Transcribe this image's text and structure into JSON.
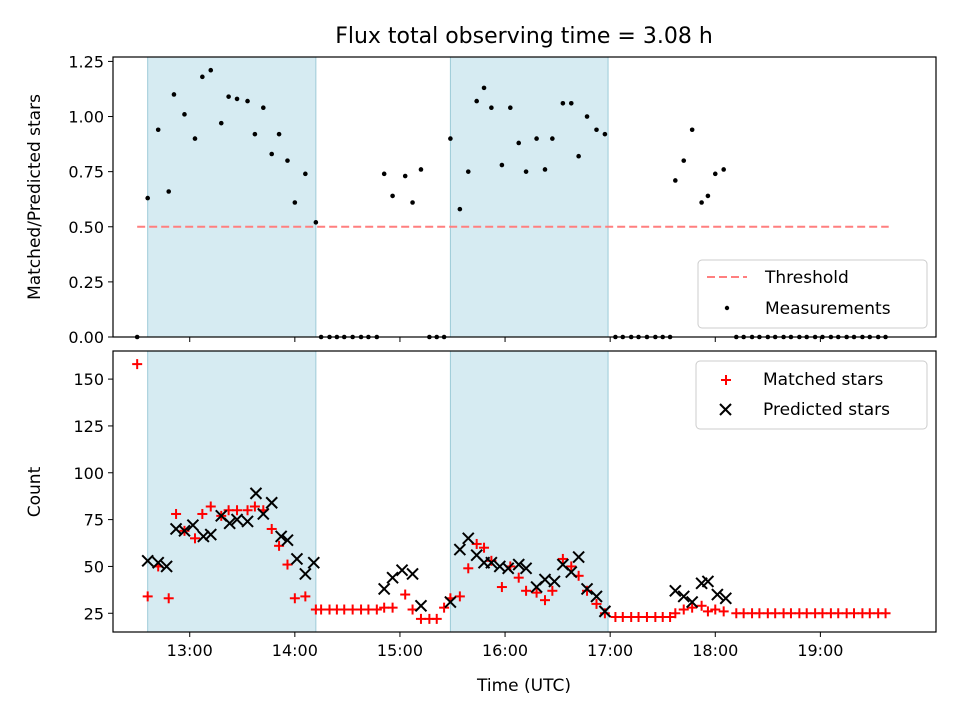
{
  "figure": {
    "title": "Flux total observing time = 3.08 h",
    "xlabel": "Time (UTC)",
    "x_ticks": [
      "13:00",
      "14:00",
      "15:00",
      "16:00",
      "17:00",
      "18:00",
      "19:00"
    ]
  },
  "chart_data": [
    {
      "type": "scatter",
      "ylabel": "Matched/Predicted stars",
      "xlim": [
        12.27,
        20.1
      ],
      "ylim": [
        0.0,
        1.27
      ],
      "y_ticks": [
        "0.00",
        "0.25",
        "0.50",
        "0.75",
        "1.00",
        "1.25"
      ],
      "legend_placement": "lower-right",
      "shaded_intervals": [
        [
          12.6,
          14.2
        ],
        [
          15.48,
          16.98
        ]
      ],
      "threshold": {
        "name": "Threshold",
        "y": 0.5,
        "x_range": [
          12.5,
          19.65
        ],
        "color": "#ff7f7f",
        "dashed": true
      },
      "series": [
        {
          "name": "Measurements",
          "color": "#000000",
          "x": [
            12.5,
            12.6,
            12.7,
            12.8,
            12.85,
            12.95,
            13.05,
            13.12,
            13.2,
            13.3,
            13.37,
            13.45,
            13.55,
            13.62,
            13.7,
            13.78,
            13.85,
            13.93,
            14.0,
            14.1,
            14.2,
            14.25,
            14.33,
            14.4,
            14.47,
            14.55,
            14.63,
            14.7,
            14.78,
            14.85,
            14.93,
            15.05,
            15.12,
            15.2,
            15.28,
            15.35,
            15.42,
            15.48,
            15.57,
            15.65,
            15.73,
            15.8,
            15.87,
            15.97,
            16.05,
            16.13,
            16.2,
            16.3,
            16.38,
            16.45,
            16.55,
            16.63,
            16.7,
            16.78,
            16.87,
            16.95,
            17.05,
            17.12,
            17.2,
            17.27,
            17.35,
            17.43,
            17.5,
            17.57,
            17.62,
            17.7,
            17.78,
            17.87,
            17.93,
            18.0,
            18.08,
            18.2,
            18.27,
            18.35,
            18.42,
            18.5,
            18.57,
            18.65,
            18.72,
            18.8,
            18.87,
            18.95,
            19.02,
            19.1,
            19.17,
            19.25,
            19.32,
            19.4,
            19.47,
            19.55,
            19.62
          ],
          "y": [
            0.0,
            0.63,
            0.94,
            0.66,
            1.1,
            1.01,
            0.9,
            1.18,
            1.21,
            0.97,
            1.09,
            1.08,
            1.07,
            0.92,
            1.04,
            0.83,
            0.92,
            0.8,
            0.61,
            0.74,
            0.52,
            0.0,
            0.0,
            0.0,
            0.0,
            0.0,
            0.0,
            0.0,
            0.0,
            0.74,
            0.64,
            0.73,
            0.61,
            0.76,
            0.0,
            0.0,
            0.0,
            0.9,
            0.58,
            0.75,
            1.07,
            1.13,
            1.04,
            0.78,
            1.04,
            0.88,
            0.75,
            0.9,
            0.76,
            0.9,
            1.06,
            1.06,
            0.82,
            1.0,
            0.94,
            0.92,
            0.0,
            0.0,
            0.0,
            0.0,
            0.0,
            0.0,
            0.0,
            0.0,
            0.71,
            0.8,
            0.94,
            0.61,
            0.64,
            0.74,
            0.76,
            0.0,
            0.0,
            0.0,
            0.0,
            0.0,
            0.0,
            0.0,
            0.0,
            0.0,
            0.0,
            0.0,
            0.0,
            0.0,
            0.0,
            0.0,
            0.0,
            0.0,
            0.0,
            0.0,
            0.0
          ]
        }
      ]
    },
    {
      "type": "scatter",
      "ylabel": "Count",
      "xlim": [
        12.27,
        20.1
      ],
      "ylim": [
        15.0,
        165.0
      ],
      "y_ticks": [
        "25",
        "50",
        "75",
        "100",
        "125",
        "150"
      ],
      "legend_placement": "upper-right",
      "shaded_intervals": [
        [
          12.6,
          14.2
        ],
        [
          15.48,
          16.98
        ]
      ],
      "series": [
        {
          "name": "Matched stars",
          "marker": "plus",
          "color": "#ff0000",
          "x": [
            12.5,
            12.6,
            12.7,
            12.8,
            12.87,
            12.95,
            13.05,
            13.12,
            13.2,
            13.3,
            13.37,
            13.45,
            13.55,
            13.62,
            13.7,
            13.78,
            13.85,
            13.93,
            14.0,
            14.1,
            14.2,
            14.25,
            14.33,
            14.4,
            14.47,
            14.55,
            14.63,
            14.7,
            14.78,
            14.85,
            14.93,
            15.05,
            15.12,
            15.2,
            15.28,
            15.35,
            15.42,
            15.48,
            15.57,
            15.65,
            15.73,
            15.8,
            15.87,
            15.97,
            16.05,
            16.13,
            16.2,
            16.3,
            16.38,
            16.45,
            16.55,
            16.63,
            16.7,
            16.78,
            16.87,
            16.95,
            17.05,
            17.12,
            17.2,
            17.27,
            17.35,
            17.43,
            17.5,
            17.57,
            17.62,
            17.7,
            17.78,
            17.87,
            17.93,
            18.0,
            18.08,
            18.2,
            18.27,
            18.35,
            18.42,
            18.5,
            18.57,
            18.65,
            18.72,
            18.8,
            18.87,
            18.95,
            19.02,
            19.1,
            19.17,
            19.25,
            19.32,
            19.4,
            19.47,
            19.55,
            19.62
          ],
          "y": [
            158,
            34,
            50,
            33,
            78,
            69,
            65,
            78,
            82,
            77,
            80,
            80,
            80,
            82,
            80,
            70,
            61,
            51,
            33,
            34,
            27,
            27,
            27,
            27,
            27,
            27,
            27,
            27,
            27,
            28,
            28,
            35,
            27,
            22,
            22,
            22,
            28,
            33,
            34,
            49,
            62,
            60,
            53,
            39,
            50,
            44,
            37,
            36,
            32,
            37,
            54,
            50,
            45,
            37,
            30,
            25,
            23,
            23,
            23,
            23,
            23,
            23,
            23,
            23,
            25,
            27,
            28,
            29,
            26,
            27,
            26,
            25,
            25,
            25,
            25,
            25,
            25,
            25,
            25,
            25,
            25,
            25,
            25,
            25,
            25,
            25,
            25,
            25,
            25,
            25,
            25
          ]
        },
        {
          "name": "Predicted stars",
          "marker": "x",
          "color": "#000000",
          "x": [
            12.6,
            12.7,
            12.78,
            12.87,
            12.95,
            13.03,
            13.13,
            13.2,
            13.3,
            13.38,
            13.45,
            13.55,
            13.63,
            13.7,
            13.78,
            13.87,
            13.93,
            14.02,
            14.1,
            14.18,
            14.85,
            14.93,
            15.02,
            15.12,
            15.2,
            15.48,
            15.57,
            15.65,
            15.73,
            15.8,
            15.87,
            15.95,
            16.03,
            16.13,
            16.2,
            16.3,
            16.38,
            16.47,
            16.55,
            16.63,
            16.7,
            16.78,
            16.87,
            16.95,
            17.62,
            17.7,
            17.78,
            17.87,
            17.93,
            18.02,
            18.1
          ],
          "y": [
            53,
            52,
            50,
            70,
            69,
            72,
            66,
            67,
            77,
            73,
            75,
            74,
            89,
            78,
            84,
            66,
            64,
            54,
            46,
            52,
            38,
            44,
            48,
            46,
            29,
            31,
            59,
            65,
            56,
            52,
            52,
            50,
            49,
            51,
            49,
            39,
            43,
            42,
            51,
            47,
            55,
            38,
            34,
            26,
            37,
            34,
            31,
            41,
            42,
            35,
            33
          ]
        }
      ]
    }
  ]
}
